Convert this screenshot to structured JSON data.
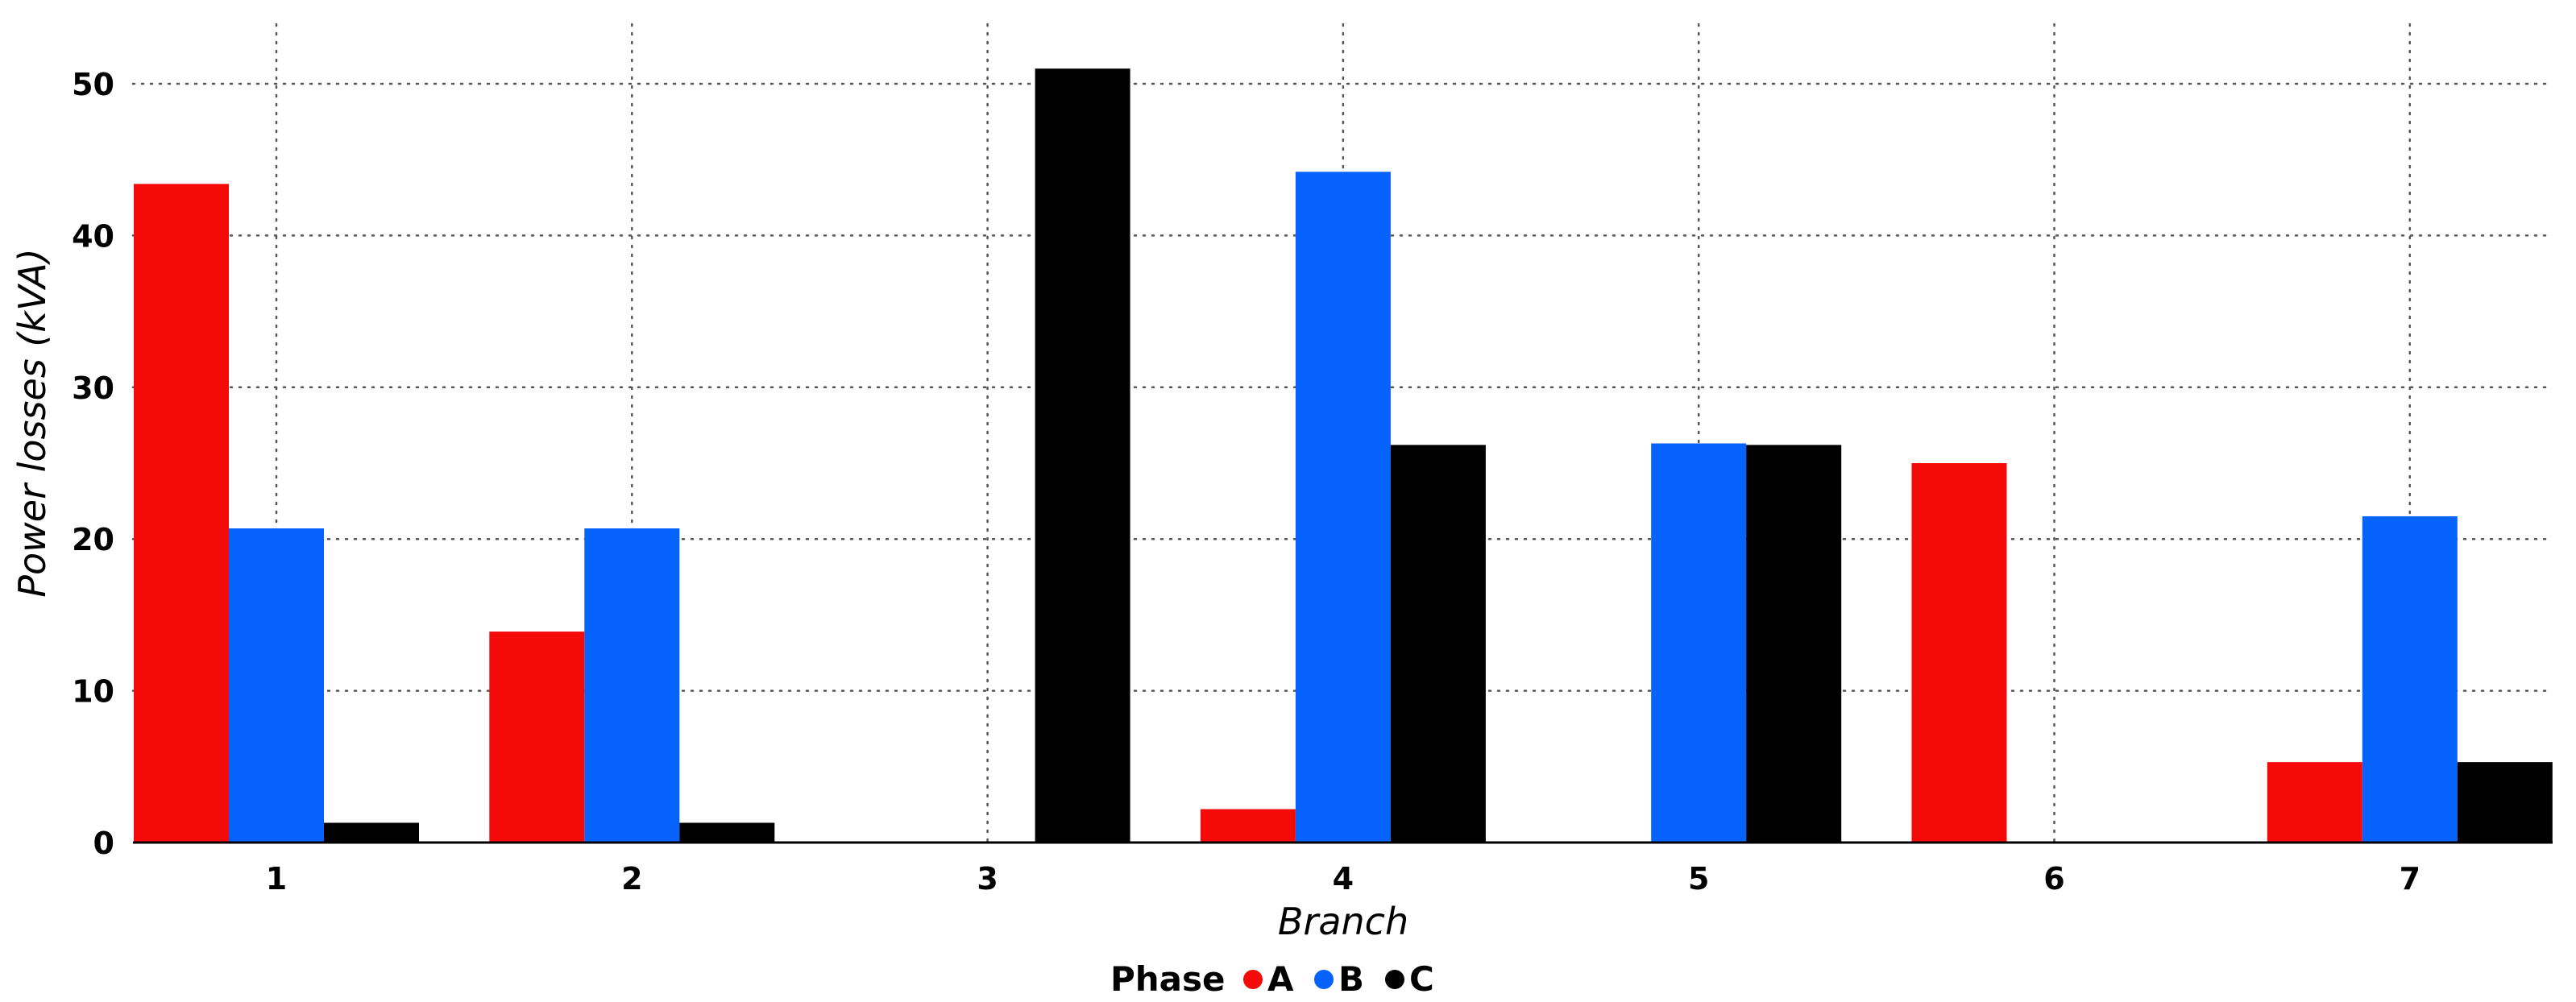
{
  "chart_data": {
    "type": "bar",
    "xlabel": "Branch",
    "ylabel": "Power losses (kVA)",
    "categories": [
      "1",
      "2",
      "3",
      "4",
      "5",
      "6",
      "7"
    ],
    "ylim": [
      0,
      52.5
    ],
    "yticks": [
      "0",
      "10",
      "20",
      "30",
      "40",
      "50"
    ],
    "grid": true,
    "legend": {
      "title": "Phase",
      "placement": "bottom"
    },
    "series": [
      {
        "name": "A",
        "color": "#f50a0a",
        "values": [
          43.4,
          13.9,
          0,
          2.2,
          0,
          25.0,
          5.3
        ]
      },
      {
        "name": "B",
        "color": "#0562fa",
        "values": [
          20.7,
          20.7,
          0,
          44.2,
          26.3,
          0,
          21.5
        ]
      },
      {
        "name": "C",
        "color": "#000000",
        "values": [
          1.3,
          1.3,
          51.0,
          26.2,
          26.2,
          0,
          5.3
        ]
      }
    ]
  }
}
